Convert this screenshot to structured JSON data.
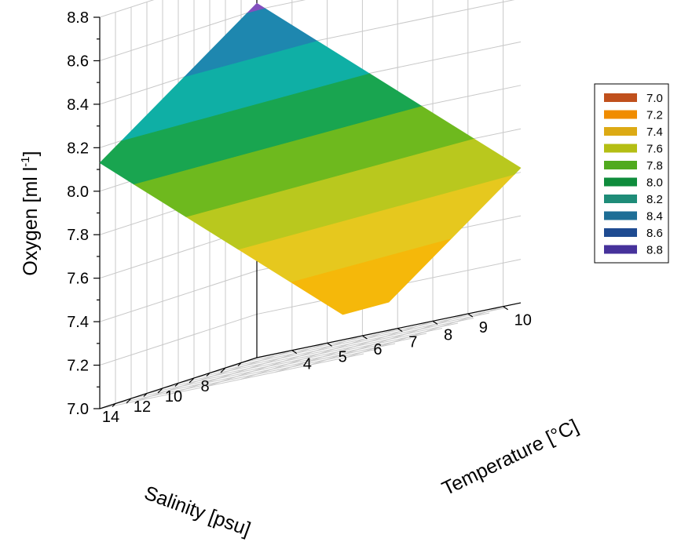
{
  "chart_data": {
    "type": "surface3d",
    "zlabel": "Oxygen [ml l",
    "zlabel_sup": "-1",
    "zlabel_end": "]",
    "xlabel": "Salinity [psu]",
    "ylabel": "Temperature [°C]",
    "z_ticks": [
      "7.0",
      "7.2",
      "7.4",
      "7.6",
      "7.8",
      "8.0",
      "8.2",
      "8.4",
      "8.6",
      "8.8"
    ],
    "z_range": [
      7.0,
      8.8
    ],
    "salinity_ticks": [
      "14",
      "12",
      "10",
      "8"
    ],
    "salinity_range": [
      6,
      16
    ],
    "temperature_ticks": [
      "4",
      "5",
      "6",
      "7",
      "8",
      "9",
      "10"
    ],
    "temperature_range": [
      3,
      10.5
    ],
    "surface_corners": [
      {
        "salinity": 16,
        "temperature": 3,
        "oxygen": 8.13
      },
      {
        "salinity": 6,
        "temperature": 3,
        "oxygen": 8.63
      },
      {
        "salinity": 6,
        "temperature": 10.5,
        "oxygen": 7.62
      },
      {
        "salinity": 16,
        "temperature": 10.5,
        "oxygen": 7.33
      }
    ],
    "legend": {
      "position": "right",
      "entries": [
        {
          "label": "7.0",
          "color": "#c0501c"
        },
        {
          "label": "7.2",
          "color": "#f08c00"
        },
        {
          "label": "7.4",
          "color": "#dcaa14"
        },
        {
          "label": "7.6",
          "color": "#b4be14"
        },
        {
          "label": "7.8",
          "color": "#50aa1e"
        },
        {
          "label": "8.0",
          "color": "#0f8c3c"
        },
        {
          "label": "8.2",
          "color": "#1e8c78"
        },
        {
          "label": "8.4",
          "color": "#1e6e96"
        },
        {
          "label": "8.6",
          "color": "#1e4b91"
        },
        {
          "label": "8.8",
          "color": "#46329b"
        }
      ]
    },
    "band_colors": [
      {
        "min": 7.2,
        "max": 7.4,
        "color": "#f5b80a"
      },
      {
        "min": 7.4,
        "max": 7.6,
        "color": "#e6c81e"
      },
      {
        "min": 7.6,
        "max": 7.8,
        "color": "#b9c81e"
      },
      {
        "min": 7.8,
        "max": 8.0,
        "color": "#6eb91e"
      },
      {
        "min": 8.0,
        "max": 8.2,
        "color": "#19a550"
      },
      {
        "min": 8.2,
        "max": 8.4,
        "color": "#0fafa5"
      },
      {
        "min": 8.4,
        "max": 8.6,
        "color": "#1e87af"
      },
      {
        "min": 8.6,
        "max": 8.8,
        "color": "#8250be"
      }
    ],
    "grid": true
  }
}
